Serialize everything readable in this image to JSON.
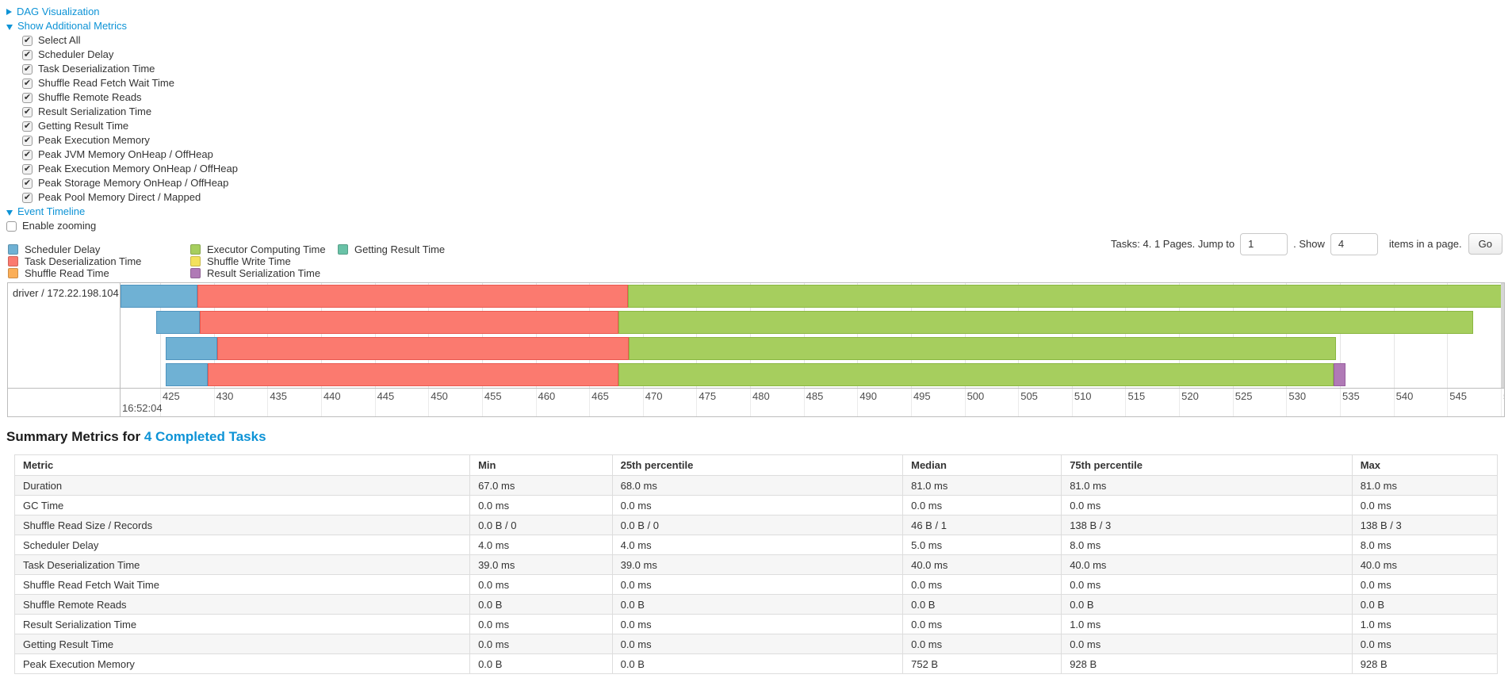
{
  "accent": "#0d93d6",
  "controls": {
    "dag": {
      "label": "DAG Visualization",
      "collapsed": true
    },
    "metrics_toggle": {
      "label": "Show Additional Metrics",
      "collapsed": false
    },
    "metric_checkboxes": [
      {
        "label": "Select All",
        "checked": true
      },
      {
        "label": "Scheduler Delay",
        "checked": true
      },
      {
        "label": "Task Deserialization Time",
        "checked": true
      },
      {
        "label": "Shuffle Read Fetch Wait Time",
        "checked": true
      },
      {
        "label": "Shuffle Remote Reads",
        "checked": true
      },
      {
        "label": "Result Serialization Time",
        "checked": true
      },
      {
        "label": "Getting Result Time",
        "checked": true
      },
      {
        "label": "Peak Execution Memory",
        "checked": true
      },
      {
        "label": "Peak JVM Memory OnHeap / OffHeap",
        "checked": true
      },
      {
        "label": "Peak Execution Memory OnHeap / OffHeap",
        "checked": true
      },
      {
        "label": "Peak Storage Memory OnHeap / OffHeap",
        "checked": true
      },
      {
        "label": "Peak Pool Memory Direct / Mapped",
        "checked": true
      }
    ],
    "event_timeline": {
      "label": "Event Timeline",
      "collapsed": false
    },
    "enable_zooming": {
      "label": "Enable zooming",
      "checked": false
    }
  },
  "legend": {
    "columns": [
      [
        {
          "key": "scheduler_delay",
          "label": "Scheduler Delay"
        },
        {
          "key": "task_deserialization",
          "label": "Task Deserialization Time"
        },
        {
          "key": "shuffle_read",
          "label": "Shuffle Read Time"
        }
      ],
      [
        {
          "key": "executor_computing",
          "label": "Executor Computing Time"
        },
        {
          "key": "shuffle_write",
          "label": "Shuffle Write Time"
        },
        {
          "key": "result_serialization",
          "label": "Result Serialization Time"
        }
      ],
      [
        {
          "key": "getting_result",
          "label": "Getting Result Time"
        }
      ]
    ]
  },
  "pagination": {
    "prefix": "Tasks: 4. 1 Pages. Jump to",
    "jump_value": "1",
    "mid": ". Show",
    "show_value": "4",
    "suffix": "items in a page.",
    "go_label": "Go"
  },
  "chart_data": {
    "type": "timeline-gantt",
    "row_label": "driver / 172.22.198.104",
    "axis": {
      "min": 421.3,
      "max": 550.3,
      "tick_start": 425,
      "tick_step": 5,
      "tick_end": 550,
      "time_label": "16:52:04"
    },
    "palette": {
      "scheduler_delay": {
        "fill": "#6FB1D4",
        "border": "#4F94BF"
      },
      "task_deserialization": {
        "fill": "#FB7A6F",
        "border": "#E9584F"
      },
      "shuffle_read": {
        "fill": "#FBAE57",
        "border": "#EE9537"
      },
      "executor_computing": {
        "fill": "#A6CE5E",
        "border": "#8AB741"
      },
      "shuffle_write": {
        "fill": "#F3E25C",
        "border": "#DECB3C"
      },
      "result_serialization": {
        "fill": "#B07AB6",
        "border": "#985E9F"
      },
      "getting_result": {
        "fill": "#69C2A7",
        "border": "#45A98B"
      }
    },
    "tasks": [
      {
        "segments": [
          {
            "key": "scheduler_delay",
            "start": 421.3,
            "end": 428.5
          },
          {
            "key": "task_deserialization",
            "start": 428.5,
            "end": 468.6
          },
          {
            "key": "executor_computing",
            "start": 468.6,
            "end": 550.3
          }
        ]
      },
      {
        "segments": [
          {
            "key": "scheduler_delay",
            "start": 424.6,
            "end": 428.7
          },
          {
            "key": "task_deserialization",
            "start": 428.7,
            "end": 467.7
          },
          {
            "key": "executor_computing",
            "start": 467.7,
            "end": 547.4
          }
        ]
      },
      {
        "segments": [
          {
            "key": "scheduler_delay",
            "start": 425.5,
            "end": 430.3
          },
          {
            "key": "task_deserialization",
            "start": 430.3,
            "end": 468.7
          },
          {
            "key": "executor_computing",
            "start": 468.7,
            "end": 534.6
          }
        ]
      },
      {
        "segments": [
          {
            "key": "scheduler_delay",
            "start": 425.5,
            "end": 429.4
          },
          {
            "key": "task_deserialization",
            "start": 429.4,
            "end": 467.7
          },
          {
            "key": "executor_computing",
            "start": 467.7,
            "end": 534.4
          },
          {
            "key": "result_serialization",
            "start": 534.4,
            "end": 535.5
          }
        ]
      }
    ]
  },
  "summary": {
    "title_prefix": "Summary Metrics for",
    "title_link": "4 Completed Tasks",
    "table": {
      "headers": [
        "Metric",
        "Min",
        "25th percentile",
        "Median",
        "75th percentile",
        "Max"
      ],
      "rows": [
        [
          "Duration",
          "67.0 ms",
          "68.0 ms",
          "81.0 ms",
          "81.0 ms",
          "81.0 ms"
        ],
        [
          "GC Time",
          "0.0 ms",
          "0.0 ms",
          "0.0 ms",
          "0.0 ms",
          "0.0 ms"
        ],
        [
          "Shuffle Read Size / Records",
          "0.0 B / 0",
          "0.0 B / 0",
          "46 B / 1",
          "138 B / 3",
          "138 B / 3"
        ],
        [
          "Scheduler Delay",
          "4.0 ms",
          "4.0 ms",
          "5.0 ms",
          "8.0 ms",
          "8.0 ms"
        ],
        [
          "Task Deserialization Time",
          "39.0 ms",
          "39.0 ms",
          "40.0 ms",
          "40.0 ms",
          "40.0 ms"
        ],
        [
          "Shuffle Read Fetch Wait Time",
          "0.0 ms",
          "0.0 ms",
          "0.0 ms",
          "0.0 ms",
          "0.0 ms"
        ],
        [
          "Shuffle Remote Reads",
          "0.0 B",
          "0.0 B",
          "0.0 B",
          "0.0 B",
          "0.0 B"
        ],
        [
          "Result Serialization Time",
          "0.0 ms",
          "0.0 ms",
          "0.0 ms",
          "1.0 ms",
          "1.0 ms"
        ],
        [
          "Getting Result Time",
          "0.0 ms",
          "0.0 ms",
          "0.0 ms",
          "0.0 ms",
          "0.0 ms"
        ],
        [
          "Peak Execution Memory",
          "0.0 B",
          "0.0 B",
          "752 B",
          "928 B",
          "928 B"
        ]
      ]
    }
  }
}
